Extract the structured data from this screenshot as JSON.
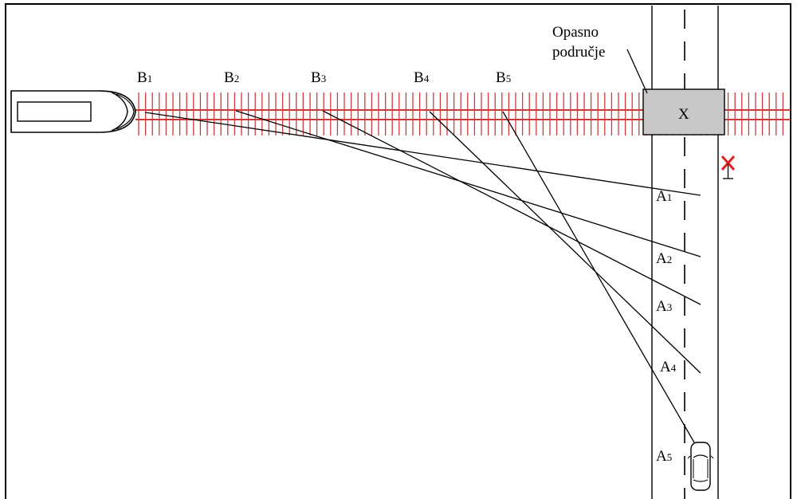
{
  "danger_zone_label": [
    "Opasno",
    "područje"
  ],
  "crossing_mark": "X",
  "positions_B": [
    {
      "letter": "B",
      "index": "1"
    },
    {
      "letter": "B",
      "index": "2"
    },
    {
      "letter": "B",
      "index": "3"
    },
    {
      "letter": "B",
      "index": "4"
    },
    {
      "letter": "B",
      "index": "5"
    }
  ],
  "positions_A": [
    {
      "letter": "A",
      "index": "1"
    },
    {
      "letter": "A",
      "index": "2"
    },
    {
      "letter": "A",
      "index": "3"
    },
    {
      "letter": "A",
      "index": "4"
    },
    {
      "letter": "A",
      "index": "5"
    }
  ],
  "colors": {
    "rail_red": "#d03a3a",
    "danger_zone_fill": "#c8c8c8",
    "signal_red": "#e0201e",
    "line": "#000000"
  }
}
